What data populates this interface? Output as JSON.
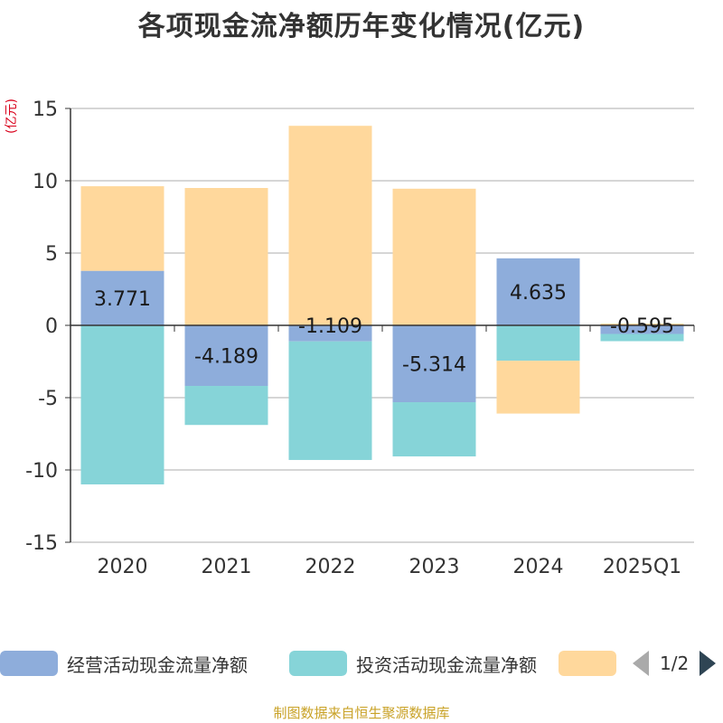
{
  "title": "各项现金流净额历年变化情况(亿元)",
  "unit": "(亿元)",
  "source": "制图数据来自恒生聚源数据库",
  "chart_data": {
    "type": "bar",
    "stacked": true,
    "title": "各项现金流净额历年变化情况(亿元)",
    "ylabel": "(亿元)",
    "ylim": [
      -15,
      15
    ],
    "yticks": [
      15,
      10,
      5,
      0,
      -5,
      -10,
      -15
    ],
    "categories": [
      "2020",
      "2021",
      "2022",
      "2023",
      "2024",
      "2025Q1"
    ],
    "series": [
      {
        "name": "经营活动现金流量净额",
        "color": "#8eaddb",
        "values": [
          3.771,
          -4.189,
          -1.109,
          -5.314,
          4.635,
          -0.595
        ],
        "labels": [
          "3.771",
          "-4.189",
          "-1.109",
          "-5.314",
          "4.635",
          "-0.595"
        ]
      },
      {
        "name": "投资活动现金流量净额",
        "color": "#86d4d8",
        "values": [
          -11.0,
          -2.7,
          -8.2,
          -3.75,
          -2.45,
          -0.5
        ]
      },
      {
        "name": "",
        "color": "#ffd89c",
        "values": [
          5.85,
          9.5,
          13.8,
          9.45,
          -3.65,
          0.12
        ]
      }
    ],
    "grid": true,
    "legend_position": "bottom"
  },
  "legend": {
    "items": [
      {
        "label": "经营活动现金流量净额",
        "color": "#8eaddb"
      },
      {
        "label": "投资活动现金流量净额",
        "color": "#86d4d8"
      },
      {
        "label": "",
        "color": "#ffd89c"
      }
    ],
    "page": "1/2"
  }
}
